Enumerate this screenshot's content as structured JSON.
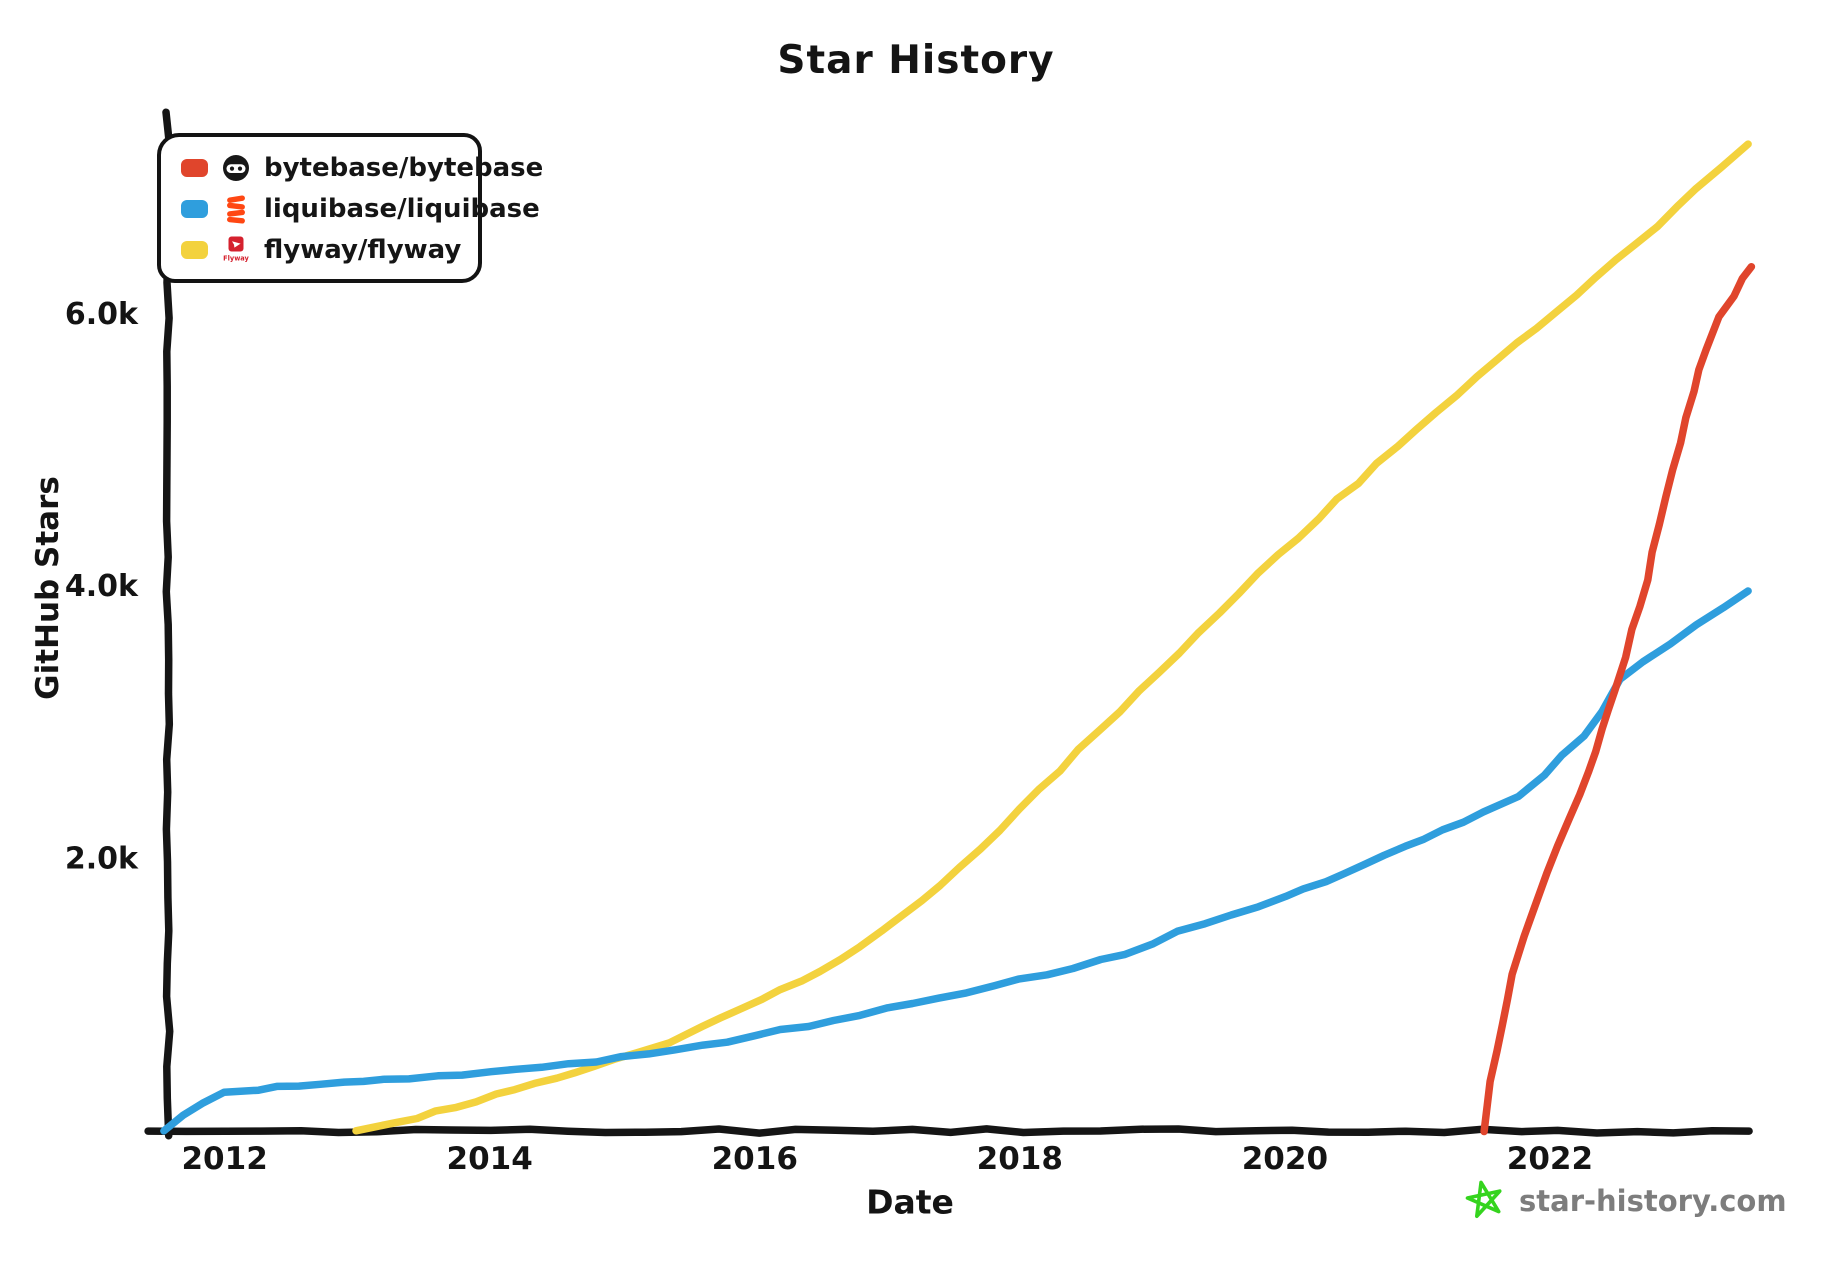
{
  "page": {
    "title": "Star History"
  },
  "watermark": {
    "text": "star-history.com",
    "star_color": "#35d41e",
    "text_color": "#7d7d7d"
  },
  "chart_data": {
    "type": "line",
    "title": "Star History",
    "xlabel": "Date",
    "ylabel": "GitHub Stars",
    "grid": false,
    "legend_position": "top-left",
    "x_range": [
      2011.55,
      2023.6
    ],
    "y_range": [
      0,
      7430
    ],
    "x_ticks": [
      {
        "label": "2012",
        "value": 2012
      },
      {
        "label": "2014",
        "value": 2014
      },
      {
        "label": "2016",
        "value": 2016
      },
      {
        "label": "2018",
        "value": 2018
      },
      {
        "label": "2020",
        "value": 2020
      },
      {
        "label": "2022",
        "value": 2022
      }
    ],
    "y_ticks": [
      {
        "label": "2.0k",
        "value": 2000
      },
      {
        "label": "4.0k",
        "value": 4000
      },
      {
        "label": "6.0k",
        "value": 6000
      }
    ],
    "series": [
      {
        "name": "bytebase/bytebase",
        "color": "#e0452c",
        "icon": "bytebase-logo",
        "points": [
          [
            2021.5,
            0
          ],
          [
            2021.56,
            350
          ],
          [
            2021.64,
            780
          ],
          [
            2021.72,
            1150
          ],
          [
            2021.8,
            1420
          ],
          [
            2021.88,
            1640
          ],
          [
            2021.97,
            1880
          ],
          [
            2022.06,
            2080
          ],
          [
            2022.16,
            2300
          ],
          [
            2022.28,
            2620
          ],
          [
            2022.4,
            2950
          ],
          [
            2022.5,
            3220
          ],
          [
            2022.58,
            3480
          ],
          [
            2022.68,
            3850
          ],
          [
            2022.78,
            4250
          ],
          [
            2022.88,
            4650
          ],
          [
            2022.98,
            5050
          ],
          [
            2023.08,
            5420
          ],
          [
            2023.18,
            5720
          ],
          [
            2023.28,
            5960
          ],
          [
            2023.38,
            6130
          ],
          [
            2023.46,
            6260
          ],
          [
            2023.52,
            6340
          ]
        ]
      },
      {
        "name": "liquibase/liquibase",
        "color": "#2f9edd",
        "icon": "liquibase-logo",
        "points": [
          [
            2011.55,
            0
          ],
          [
            2011.68,
            110
          ],
          [
            2011.82,
            200
          ],
          [
            2012.0,
            268
          ],
          [
            2012.25,
            300
          ],
          [
            2012.55,
            322
          ],
          [
            2012.9,
            342
          ],
          [
            2013.2,
            362
          ],
          [
            2013.6,
            398
          ],
          [
            2014.0,
            432
          ],
          [
            2014.4,
            468
          ],
          [
            2014.8,
            510
          ],
          [
            2015.2,
            560
          ],
          [
            2015.6,
            618
          ],
          [
            2016.0,
            690
          ],
          [
            2016.4,
            768
          ],
          [
            2016.8,
            848
          ],
          [
            2017.2,
            930
          ],
          [
            2017.6,
            1012
          ],
          [
            2018.0,
            1100
          ],
          [
            2018.4,
            1192
          ],
          [
            2018.8,
            1295
          ],
          [
            2019.2,
            1450
          ],
          [
            2019.6,
            1580
          ],
          [
            2020.0,
            1720
          ],
          [
            2020.3,
            1830
          ],
          [
            2020.6,
            1950
          ],
          [
            2020.9,
            2080
          ],
          [
            2021.2,
            2200
          ],
          [
            2021.5,
            2330
          ],
          [
            2021.75,
            2460
          ],
          [
            2021.95,
            2600
          ],
          [
            2022.1,
            2760
          ],
          [
            2022.25,
            2900
          ],
          [
            2022.4,
            3060
          ],
          [
            2022.54,
            3300
          ],
          [
            2022.7,
            3430
          ],
          [
            2022.9,
            3570
          ],
          [
            2023.1,
            3700
          ],
          [
            2023.3,
            3830
          ],
          [
            2023.5,
            3960
          ]
        ]
      },
      {
        "name": "flyway/flyway",
        "color": "#f3d23e",
        "icon": "flyway-logo",
        "points": [
          [
            2013.0,
            0
          ],
          [
            2013.3,
            60
          ],
          [
            2013.6,
            130
          ],
          [
            2013.9,
            215
          ],
          [
            2014.2,
            295
          ],
          [
            2014.5,
            375
          ],
          [
            2014.8,
            470
          ],
          [
            2015.1,
            565
          ],
          [
            2015.35,
            650
          ],
          [
            2015.6,
            750
          ],
          [
            2015.9,
            880
          ],
          [
            2016.2,
            1020
          ],
          [
            2016.5,
            1170
          ],
          [
            2016.8,
            1345
          ],
          [
            2017.1,
            1565
          ],
          [
            2017.4,
            1800
          ],
          [
            2017.7,
            2065
          ],
          [
            2018.0,
            2350
          ],
          [
            2018.3,
            2640
          ],
          [
            2018.6,
            2930
          ],
          [
            2018.9,
            3220
          ],
          [
            2019.2,
            3510
          ],
          [
            2019.5,
            3800
          ],
          [
            2019.8,
            4080
          ],
          [
            2020.1,
            4355
          ],
          [
            2020.4,
            4625
          ],
          [
            2020.7,
            4890
          ],
          [
            2021.0,
            5150
          ],
          [
            2021.3,
            5405
          ],
          [
            2021.6,
            5650
          ],
          [
            2021.9,
            5890
          ],
          [
            2022.2,
            6130
          ],
          [
            2022.5,
            6380
          ],
          [
            2022.8,
            6640
          ],
          [
            2023.1,
            6900
          ],
          [
            2023.3,
            7065
          ],
          [
            2023.5,
            7250
          ]
        ]
      }
    ]
  }
}
